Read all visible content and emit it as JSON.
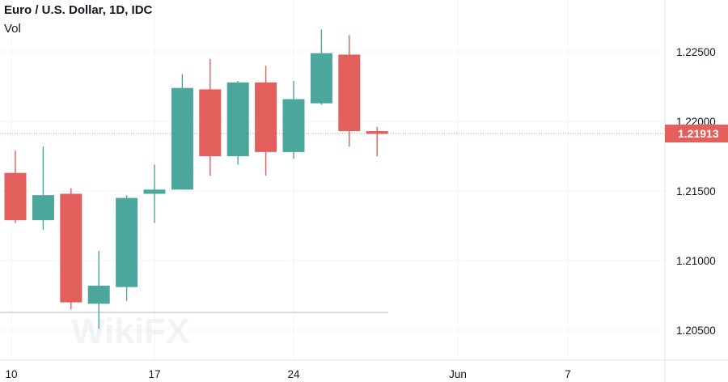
{
  "header": {
    "title": "Euro / U.S. Dollar, 1D, IDC",
    "volume_label": "Vol"
  },
  "watermark": {
    "text": "WikiFX"
  },
  "colors": {
    "up": "#4ba69c",
    "down": "#e25f5b",
    "grid": "#f0f3fa",
    "last_price_line": "#e25f5b"
  },
  "chart_data": {
    "type": "candlestick",
    "symbol": "Euro / U.S. Dollar",
    "timeframe": "1D",
    "source": "IDC",
    "y_axis": {
      "ticks": [
        "1.22500",
        "1.22000",
        "1.21500",
        "1.21000",
        "1.20500"
      ],
      "range": [
        1.2038,
        1.2297
      ]
    },
    "x_axis": {
      "ticks": [
        "10",
        "17",
        "24",
        "Jun",
        "7"
      ]
    },
    "last_price": "1.21913",
    "candles": [
      {
        "date": "May 10",
        "open": 1.2163,
        "high": 1.2179,
        "low": 1.2127,
        "close": 1.2129
      },
      {
        "date": "May 11",
        "open": 1.2129,
        "high": 1.2182,
        "low": 1.2122,
        "close": 1.2147
      },
      {
        "date": "May 12",
        "open": 1.2148,
        "high": 1.2152,
        "low": 1.2065,
        "close": 1.207
      },
      {
        "date": "May 13",
        "open": 1.2069,
        "high": 1.2107,
        "low": 1.2051,
        "close": 1.2082
      },
      {
        "date": "May 14",
        "open": 1.2081,
        "high": 1.2147,
        "low": 1.2071,
        "close": 1.2145
      },
      {
        "date": "May 17",
        "open": 1.2148,
        "high": 1.2169,
        "low": 1.2127,
        "close": 1.2151
      },
      {
        "date": "May 18",
        "open": 1.2151,
        "high": 1.2234,
        "low": 1.2151,
        "close": 1.2224
      },
      {
        "date": "May 19",
        "open": 1.2223,
        "high": 1.2245,
        "low": 1.2161,
        "close": 1.2175
      },
      {
        "date": "May 20",
        "open": 1.2175,
        "high": 1.2229,
        "low": 1.2169,
        "close": 1.2228
      },
      {
        "date": "May 21",
        "open": 1.2228,
        "high": 1.224,
        "low": 1.2161,
        "close": 1.2178
      },
      {
        "date": "May 24",
        "open": 1.2178,
        "high": 1.2229,
        "low": 1.2173,
        "close": 1.2216
      },
      {
        "date": "May 25",
        "open": 1.2213,
        "high": 1.2266,
        "low": 1.2212,
        "close": 1.2249
      },
      {
        "date": "May 26",
        "open": 1.2248,
        "high": 1.2262,
        "low": 1.2182,
        "close": 1.2193
      },
      {
        "date": "May 27",
        "open": 1.2193,
        "high": 1.2196,
        "low": 1.2175,
        "close": 1.2191
      }
    ]
  }
}
